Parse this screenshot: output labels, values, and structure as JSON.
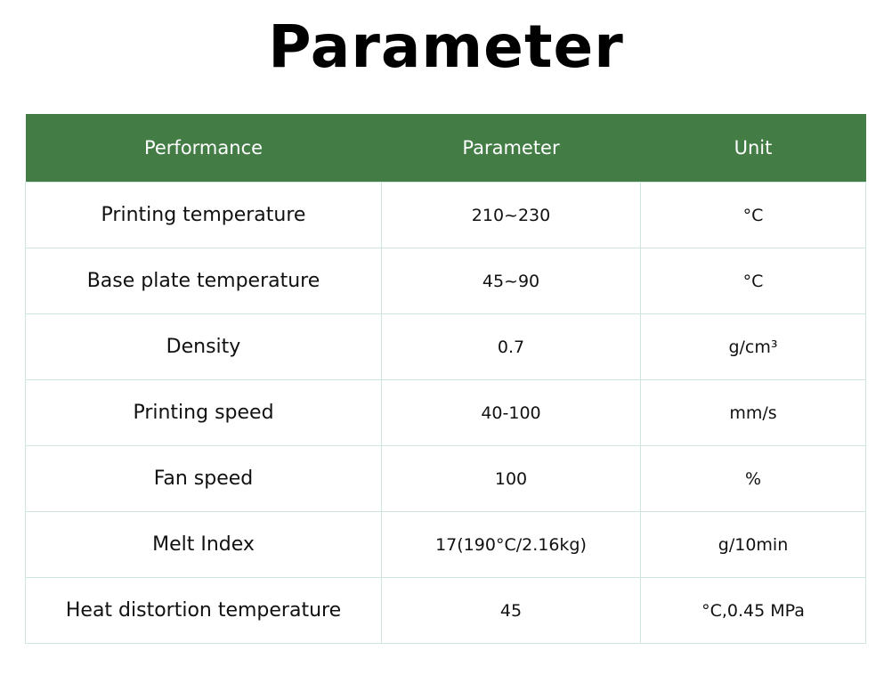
{
  "header": {
    "title": "Parameter"
  },
  "table": {
    "columns": [
      "Performance",
      "Parameter",
      "Unit"
    ],
    "rows": [
      [
        "Printing temperature",
        "210~230",
        "°C"
      ],
      [
        "Base plate temperature",
        "45~90",
        "°C"
      ],
      [
        "Density",
        "0.7",
        "g/cm³"
      ],
      [
        "Printing speed",
        "40-100",
        "mm/s"
      ],
      [
        "Fan speed",
        "100",
        "%"
      ],
      [
        "Melt Index",
        "17(190°C/2.16kg)",
        "g/10min"
      ],
      [
        "Heat distortion temperature",
        "45",
        "°C,0.45 MPa"
      ]
    ]
  }
}
